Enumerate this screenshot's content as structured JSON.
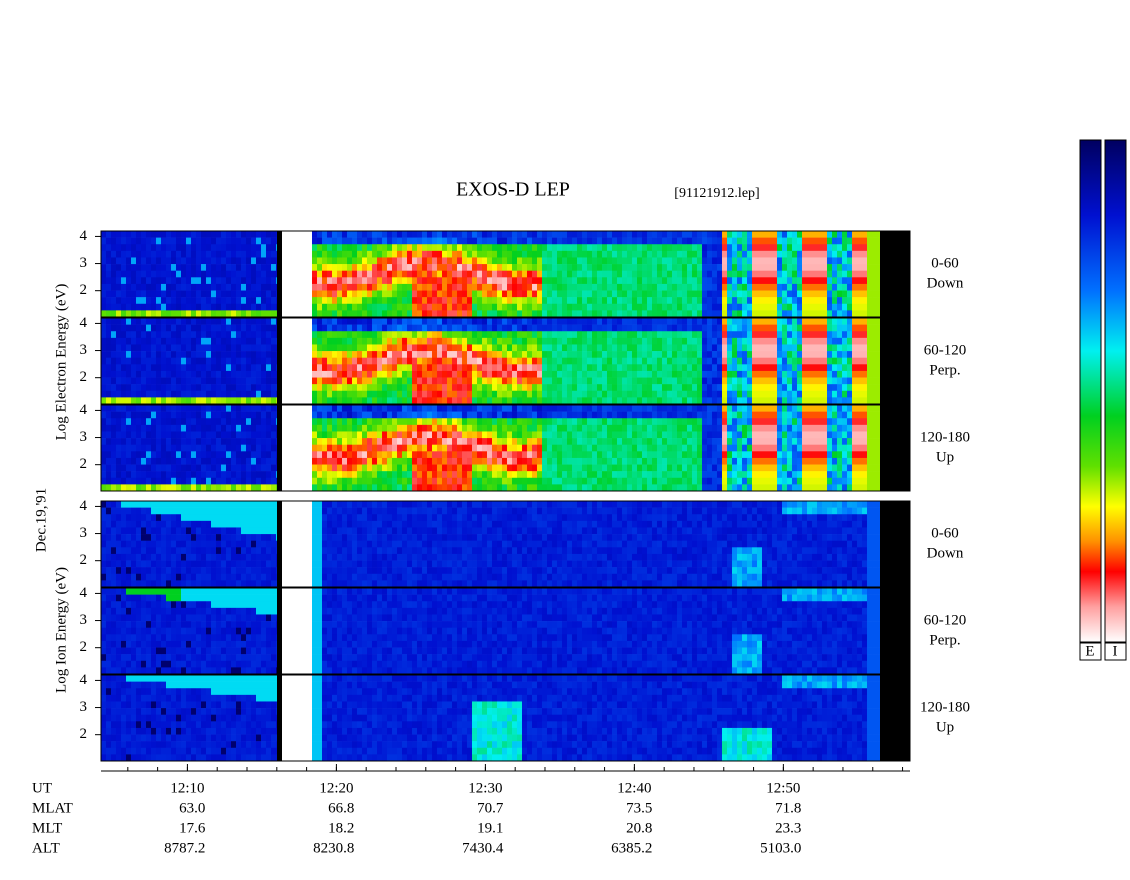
{
  "title": "EXOS-D LEP",
  "file": "[91121912.lep]",
  "date": "Dec.19,'91",
  "groups": [
    {
      "label": "Log Electron Energy (eV)",
      "panels": [
        {
          "angle": "0-60",
          "direction": "Down"
        },
        {
          "angle": "60-120",
          "direction": "Perp."
        },
        {
          "angle": "120-180",
          "direction": "Up"
        }
      ]
    },
    {
      "label": "Log Ion Energy (eV)",
      "panels": [
        {
          "angle": "0-60",
          "direction": "Down"
        },
        {
          "angle": "60-120",
          "direction": "Perp."
        },
        {
          "angle": "120-180",
          "direction": "Up"
        }
      ]
    }
  ],
  "axis": {
    "ylim": [
      1.03,
      4.2
    ],
    "yticks": [
      2,
      3,
      4
    ],
    "xlim": [
      724.2,
      778.5
    ],
    "xticks": [
      {
        "value": 730,
        "label": "12:10"
      },
      {
        "value": 740,
        "label": "12:20"
      },
      {
        "value": 750,
        "label": "12:30"
      },
      {
        "value": 760,
        "label": "12:40"
      },
      {
        "value": 770,
        "label": "12:50"
      }
    ],
    "xlabel": "UT"
  },
  "orbit": [
    {
      "label": "MLAT",
      "values": [
        "63.0",
        "66.8",
        "70.7",
        "73.5",
        "71.8"
      ]
    },
    {
      "label": "MLT",
      "values": [
        "17.6",
        "18.2",
        "19.1",
        "20.8",
        "23.3"
      ]
    },
    {
      "label": "ALT",
      "values": [
        "8787.2",
        "8230.8",
        "7430.4",
        "6385.2",
        "5103.0"
      ]
    }
  ],
  "colorbar": {
    "labels": [
      "E",
      "I"
    ]
  }
}
